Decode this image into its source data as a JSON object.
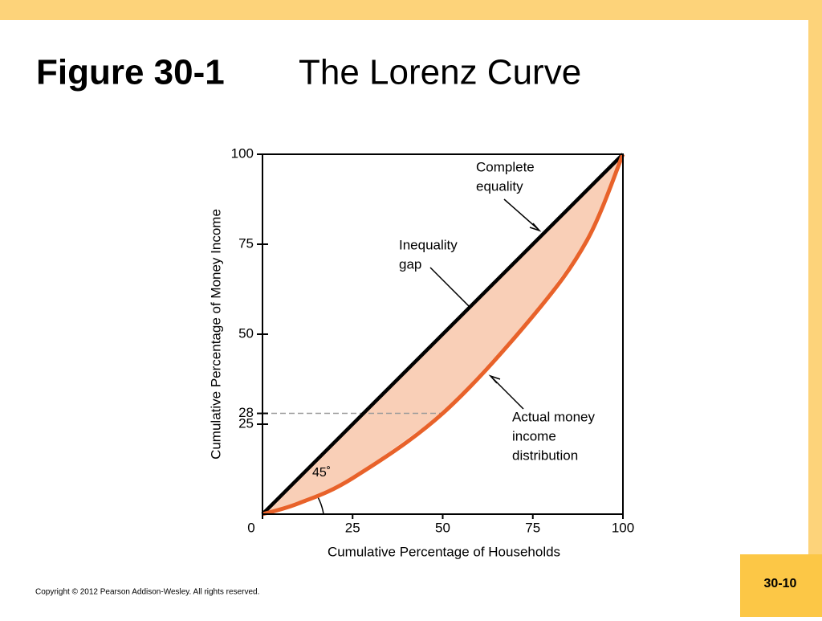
{
  "slide": {
    "title_bold": "Figure 30-1",
    "title_rest": "The Lorenz Curve",
    "copyright": "Copyright © 2012 Pearson Addison-Wesley. All rights reserved.",
    "page_number": "30-10"
  },
  "chart_data": {
    "type": "line",
    "x_label": "Cumulative Percentage of Households",
    "y_label": "Cumulative Percentage of Money Income",
    "xlim": [
      0,
      100
    ],
    "ylim": [
      0,
      100
    ],
    "xticks": [
      0,
      25,
      50,
      75,
      100
    ],
    "yticks": [
      25,
      28,
      50,
      75,
      100
    ],
    "series": [
      {
        "name": "Complete equality",
        "color": "#000000",
        "x": [
          0,
          100
        ],
        "values": [
          0,
          100
        ]
      },
      {
        "name": "Actual money income distribution",
        "color": "#e8622a",
        "x": [
          0,
          10,
          25,
          50,
          75,
          90,
          100
        ],
        "values": [
          0,
          3,
          10,
          28,
          55,
          76,
          100
        ]
      }
    ],
    "fill_between_color": "#f9cfb7",
    "annotations": [
      [
        "Complete",
        "equality"
      ],
      [
        "Inequality",
        "gap"
      ],
      [
        "Actual money",
        "income",
        "distribution"
      ]
    ],
    "angle_label": "45˚"
  }
}
